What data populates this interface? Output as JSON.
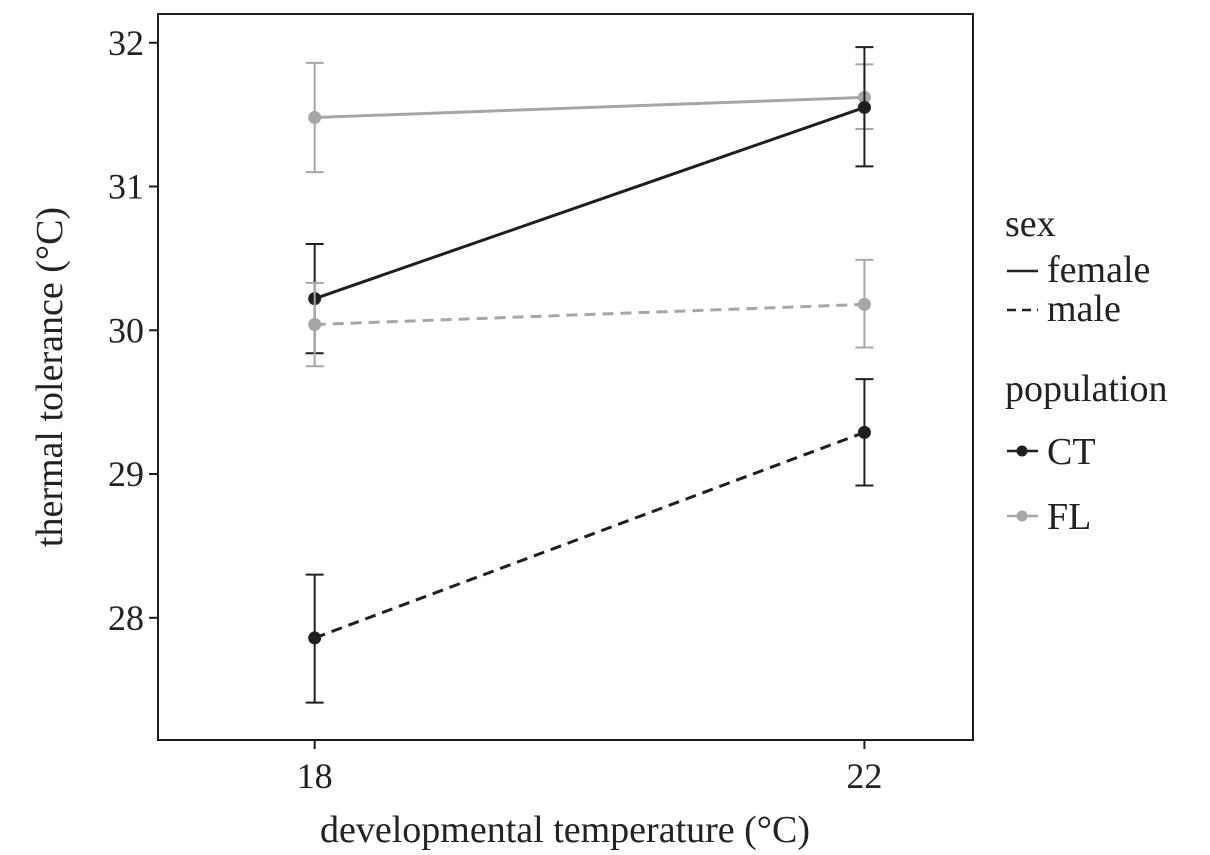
{
  "chart_data": {
    "type": "line",
    "xlabel": "developmental temperature (°C)",
    "ylabel": "thermal tolerance (°C)",
    "categories": [
      "18",
      "22"
    ],
    "x": [
      18,
      22
    ],
    "xlim": [
      16.86,
      22.79
    ],
    "ylim": [
      27.15,
      32.2
    ],
    "yticks": [
      28,
      29,
      30,
      31,
      32
    ],
    "grid": false,
    "legend_position": "right",
    "legend": {
      "sex_title": "sex",
      "sex_items": [
        {
          "label": "female",
          "linetype": "solid"
        },
        {
          "label": "male",
          "linetype": "dashed"
        }
      ],
      "population_title": "population",
      "population_items": [
        {
          "label": "CT",
          "color": "#1f1f1f"
        },
        {
          "label": "FL",
          "color": "#a6a6a6"
        }
      ]
    },
    "series": [
      {
        "population": "FL",
        "sex": "female",
        "color": "#a6a6a6",
        "linetype": "solid",
        "values": [
          31.48,
          31.62
        ],
        "err_low": [
          31.1,
          31.4
        ],
        "err_high": [
          31.86,
          31.85
        ]
      },
      {
        "population": "CT",
        "sex": "female",
        "color": "#1f1f1f",
        "linetype": "solid",
        "values": [
          30.22,
          31.55
        ],
        "err_low": [
          29.84,
          31.14
        ],
        "err_high": [
          30.6,
          31.97
        ]
      },
      {
        "population": "FL",
        "sex": "male",
        "color": "#a6a6a6",
        "linetype": "dashed",
        "values": [
          30.04,
          30.18
        ],
        "err_low": [
          29.75,
          29.88
        ],
        "err_high": [
          30.33,
          30.49
        ]
      },
      {
        "population": "CT",
        "sex": "male",
        "color": "#1f1f1f",
        "linetype": "dashed",
        "values": [
          27.86,
          29.29
        ],
        "err_low": [
          27.41,
          28.92
        ],
        "err_high": [
          28.3,
          29.66
        ]
      }
    ]
  }
}
